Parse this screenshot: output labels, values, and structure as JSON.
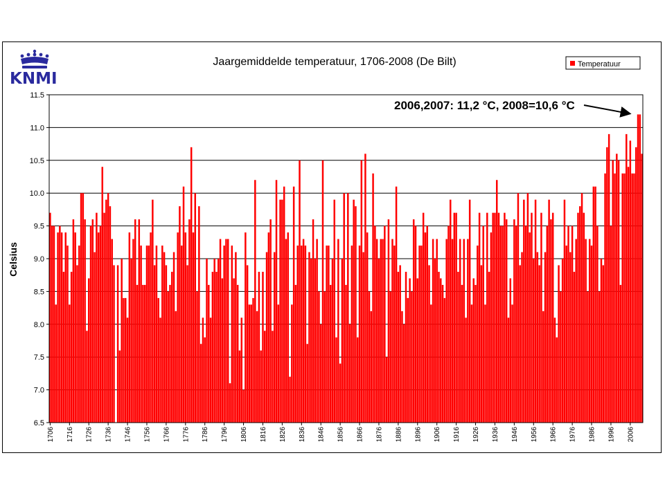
{
  "logo": {
    "text": "KNMI",
    "color": "#2a2a9e"
  },
  "chart_data": {
    "type": "bar",
    "title": "Jaargemiddelde temperatuur, 1706-2008 (De Bilt)",
    "ylabel": "Celsius",
    "xlabel": "",
    "ylim": [
      6.5,
      11.5
    ],
    "yticks": [
      6.5,
      7.0,
      7.5,
      8.0,
      8.5,
      9.0,
      9.5,
      10.0,
      10.5,
      11.0,
      11.5
    ],
    "ytick_labels": [
      "6.5",
      "7.0",
      "7.5",
      "8.0",
      "8.5",
      "9.0",
      "9.5",
      "10.0",
      "10.5",
      "11.0",
      "11.5"
    ],
    "xtick_labels": [
      "1706",
      "1716",
      "1726",
      "1736",
      "1746",
      "1756",
      "1766",
      "1776",
      "1786",
      "1796",
      "1806",
      "1816",
      "1826",
      "1836",
      "1846",
      "1856",
      "1866",
      "1876",
      "1886",
      "1896",
      "1906",
      "1916",
      "1926",
      "1936",
      "1946",
      "1956",
      "1966",
      "1976",
      "1986",
      "1996",
      "2006"
    ],
    "grid": "horizontal",
    "legend_position": "top-right",
    "bar_color": "#ff0000",
    "series": [
      {
        "name": "Temperatuur",
        "start_year": 1706,
        "values": [
          9.7,
          9.5,
          9.5,
          8.3,
          9.4,
          9.5,
          9.4,
          8.8,
          9.4,
          9.2,
          8.3,
          8.8,
          9.6,
          9.4,
          8.9,
          9.2,
          10.0,
          10.0,
          9.6,
          7.9,
          8.7,
          9.5,
          9.6,
          9.1,
          9.7,
          9.4,
          9.5,
          10.4,
          9.7,
          9.9,
          10.0,
          9.8,
          9.3,
          8.9,
          6.5,
          8.9,
          7.6,
          9.0,
          8.4,
          8.4,
          8.1,
          9.4,
          9.0,
          9.3,
          9.6,
          8.6,
          9.6,
          9.2,
          8.6,
          8.6,
          9.2,
          9.2,
          9.4,
          9.9,
          8.9,
          9.2,
          8.4,
          8.1,
          9.2,
          9.1,
          8.9,
          8.5,
          8.6,
          8.8,
          9.1,
          8.2,
          9.4,
          9.8,
          9.2,
          10.1,
          9.4,
          8.9,
          9.6,
          10.7,
          9.4,
          10.0,
          8.5,
          9.8,
          7.7,
          8.1,
          7.8,
          9.0,
          8.6,
          8.1,
          8.8,
          9.0,
          8.8,
          9.0,
          9.3,
          8.7,
          9.2,
          9.3,
          9.3,
          7.1,
          9.2,
          8.7,
          9.1,
          8.6,
          7.6,
          8.1,
          7.0,
          9.4,
          8.9,
          8.3,
          8.3,
          8.4,
          10.2,
          8.2,
          8.8,
          7.6,
          8.8,
          7.9,
          9.1,
          9.4,
          9.6,
          7.9,
          9.1,
          10.2,
          8.3,
          9.9,
          9.9,
          10.1,
          9.3,
          9.4,
          7.2,
          8.3,
          10.1,
          8.6,
          9.2,
          10.5,
          9.2,
          9.3,
          9.2,
          7.7,
          9.1,
          9.0,
          9.6,
          9.0,
          9.3,
          8.5,
          8.0,
          10.5,
          8.5,
          9.2,
          9.2,
          8.6,
          9.0,
          9.9,
          7.8,
          9.3,
          7.4,
          9.0,
          10.0,
          8.6,
          10.0,
          8.0,
          9.2,
          9.9,
          9.8,
          7.8,
          9.2,
          10.5,
          9.1,
          10.6,
          9.4,
          8.5,
          8.2,
          10.3,
          9.5,
          9.3,
          9.0,
          9.3,
          9.3,
          9.5,
          7.5,
          9.6,
          8.5,
          9.3,
          9.2,
          10.1,
          8.8,
          8.9,
          8.2,
          8.0,
          8.8,
          8.4,
          8.7,
          8.5,
          9.6,
          9.5,
          8.7,
          9.2,
          9.2,
          9.7,
          9.4,
          9.5,
          8.9,
          8.3,
          9.3,
          9.0,
          9.3,
          8.8,
          8.7,
          8.6,
          8.4,
          9.3,
          9.5,
          9.9,
          9.3,
          9.7,
          9.7,
          8.8,
          9.3,
          8.6,
          9.3,
          8.1,
          9.3,
          9.9,
          8.3,
          8.7,
          8.6,
          9.2,
          9.7,
          8.9,
          9.5,
          8.3,
          9.7,
          8.8,
          9.4,
          9.7,
          9.7,
          10.2,
          9.7,
          9.5,
          9.5,
          9.7,
          9.6,
          8.1,
          8.7,
          8.3,
          9.6,
          9.5,
          10.0,
          8.9,
          9.1,
          9.9,
          9.5,
          10.0,
          9.4,
          9.7,
          9.0,
          9.9,
          9.1,
          8.9,
          9.7,
          8.2,
          9.1,
          9.5,
          9.9,
          9.6,
          9.7,
          8.1,
          7.8,
          8.9,
          8.5,
          9.0,
          9.9,
          9.2,
          9.5,
          9.1,
          9.5,
          8.8,
          9.3,
          9.7,
          9.8,
          10.0,
          9.7,
          9.3,
          8.5,
          9.3,
          9.2,
          10.1,
          10.1,
          9.5,
          8.5,
          9.0,
          8.9,
          10.3,
          10.7,
          10.9,
          9.5,
          10.5,
          10.3,
          10.6,
          10.5,
          8.6,
          10.3,
          10.3,
          10.9,
          10.4,
          10.8,
          10.3,
          10.3,
          10.7,
          11.2,
          11.2,
          10.6
        ]
      }
    ],
    "annotation": {
      "text": "2006,2007: 11,2 °C, 2008=10,6 °C",
      "target_year": 2007,
      "target_value": 11.2
    }
  }
}
